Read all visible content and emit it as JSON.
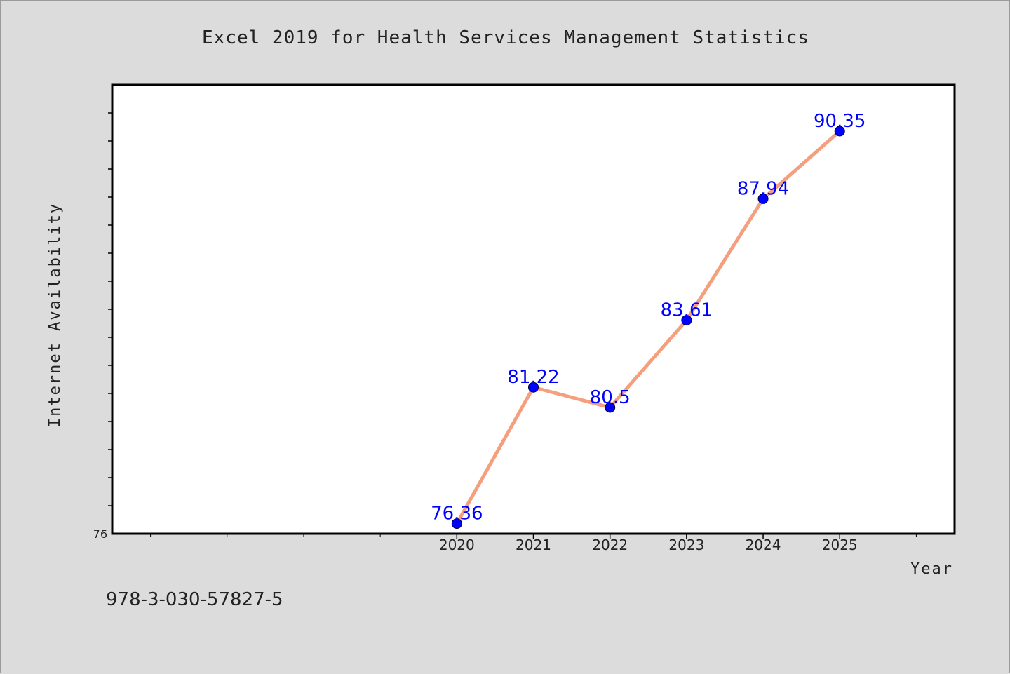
{
  "chart_data": {
    "type": "line",
    "title": "Excel 2019 for Health Services Management Statistics",
    "xlabel": "Year",
    "ylabel": "Internet Availability",
    "x": [
      "2020",
      "2021",
      "2022",
      "2023",
      "2024",
      "2025"
    ],
    "series": [
      {
        "values": [
          76.36,
          81.22,
          80.5,
          83.61,
          87.94,
          90.35
        ]
      }
    ],
    "data_labels": [
      "76.36",
      "81.22",
      "80.5",
      "83.61",
      "87.94",
      "90.35"
    ],
    "ylim": [
      76,
      92
    ],
    "xlim": [
      2015.5,
      2026.5
    ],
    "y_tick_label": "76",
    "grid": false,
    "legend": "none",
    "colors": {
      "line": "#f4a07f",
      "marker": "#0000ff",
      "data_label": "#0000ff",
      "plot_background": "#ffffff",
      "figure_background": "#dcdcdc"
    }
  },
  "footer": {
    "isbn": "978-3-030-57827-5"
  }
}
